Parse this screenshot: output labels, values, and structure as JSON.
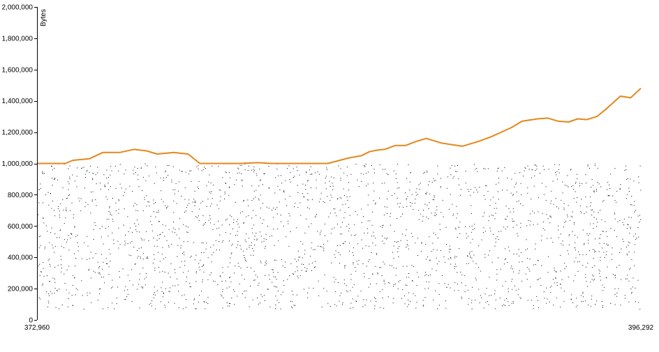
{
  "chart_data": {
    "type": "scatter",
    "ylabel": "Bytes",
    "xlim": [
      372960,
      396292
    ],
    "ylim": [
      0,
      2000000
    ],
    "x_tick_labels": [
      "372,960",
      "396,292"
    ],
    "y_ticks": [
      0,
      200000,
      400000,
      600000,
      800000,
      1000000,
      1200000,
      1400000,
      1600000,
      1800000,
      2000000
    ],
    "y_tick_labels": [
      "0",
      "200,000",
      "400,000",
      "600,000",
      "800,000",
      "1,000,000",
      "1,200,000",
      "1,400,000",
      "1,600,000",
      "1,800,000",
      "2,000,000"
    ],
    "grid": false,
    "line_color": "#e5861c",
    "dot_color": "#333333",
    "series": [
      {
        "type": "line",
        "x": [
          372960,
          374050,
          374350,
          374980,
          375500,
          376150,
          376700,
          377200,
          377600,
          378250,
          378800,
          379250,
          379700,
          380150,
          380800,
          381500,
          382000,
          382700,
          383400,
          384200,
          385000,
          385500,
          385800,
          386100,
          386400,
          386800,
          387200,
          387600,
          388000,
          388600,
          389000,
          389400,
          390000,
          390500,
          390900,
          391300,
          391700,
          392300,
          392700,
          393100,
          393500,
          393850,
          394200,
          394600,
          395000,
          395500,
          395900,
          396292
        ],
        "y": [
          1000000,
          1000000,
          1020000,
          1030000,
          1070000,
          1070000,
          1090000,
          1080000,
          1060000,
          1070000,
          1060000,
          1000000,
          1000000,
          1000000,
          1000000,
          1005000,
          1000000,
          1000000,
          1000000,
          1000000,
          1035000,
          1050000,
          1075000,
          1085000,
          1090000,
          1115000,
          1115000,
          1140000,
          1160000,
          1130000,
          1120000,
          1110000,
          1140000,
          1170000,
          1200000,
          1230000,
          1270000,
          1285000,
          1290000,
          1270000,
          1265000,
          1285000,
          1280000,
          1300000,
          1355000,
          1430000,
          1420000,
          1480000
        ]
      },
      {
        "type": "scatter",
        "count": 2300,
        "x_range": [
          372960,
          396292
        ],
        "y_range": [
          70000,
          1000000
        ]
      }
    ]
  }
}
